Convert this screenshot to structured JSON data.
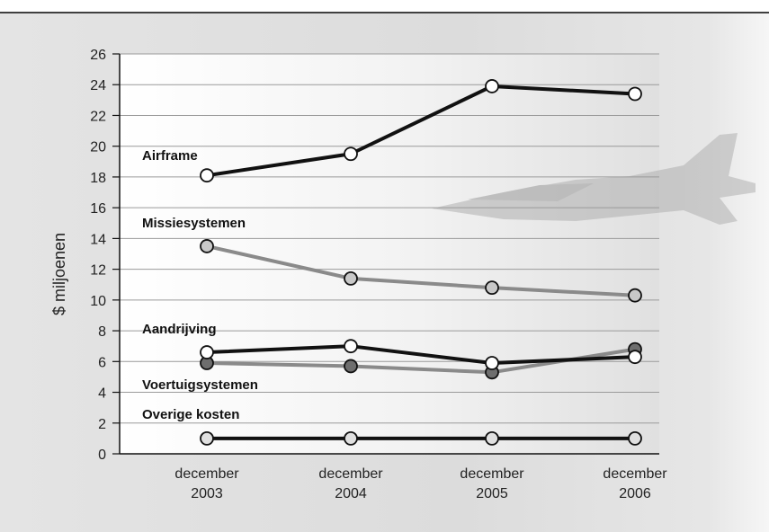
{
  "chart_data": {
    "type": "line",
    "ylabel": "$ miljoenen",
    "ylim": [
      0,
      26
    ],
    "yticks": [
      0,
      2,
      4,
      6,
      8,
      10,
      12,
      14,
      16,
      18,
      20,
      22,
      24,
      26
    ],
    "categories": [
      [
        "december",
        "2003"
      ],
      [
        "december",
        "2004"
      ],
      [
        "december",
        "2005"
      ],
      [
        "december",
        "2006"
      ]
    ],
    "grid": true,
    "series": [
      {
        "name": "Airframe",
        "values": [
          18.1,
          19.5,
          23.9,
          23.4
        ],
        "color": "#111111",
        "marker": "#ffffff"
      },
      {
        "name": "Missiesystemen",
        "values": [
          13.5,
          11.4,
          10.8,
          10.3
        ],
        "color": "#8a8a8a",
        "marker": "#c8c8c8"
      },
      {
        "name": "Aandrijving",
        "values": [
          6.6,
          7.0,
          5.9,
          6.3
        ],
        "color": "#111111",
        "marker": "#ffffff"
      },
      {
        "name": "Voertuigsystemen",
        "values": [
          5.9,
          5.7,
          5.3,
          6.8
        ],
        "color": "#8a8a8a",
        "marker": "#6e6e6e"
      },
      {
        "name": "Overige kosten",
        "values": [
          1.0,
          1.0,
          1.0,
          1.0
        ],
        "color": "#111111",
        "marker": "#e0e0e0"
      }
    ]
  }
}
